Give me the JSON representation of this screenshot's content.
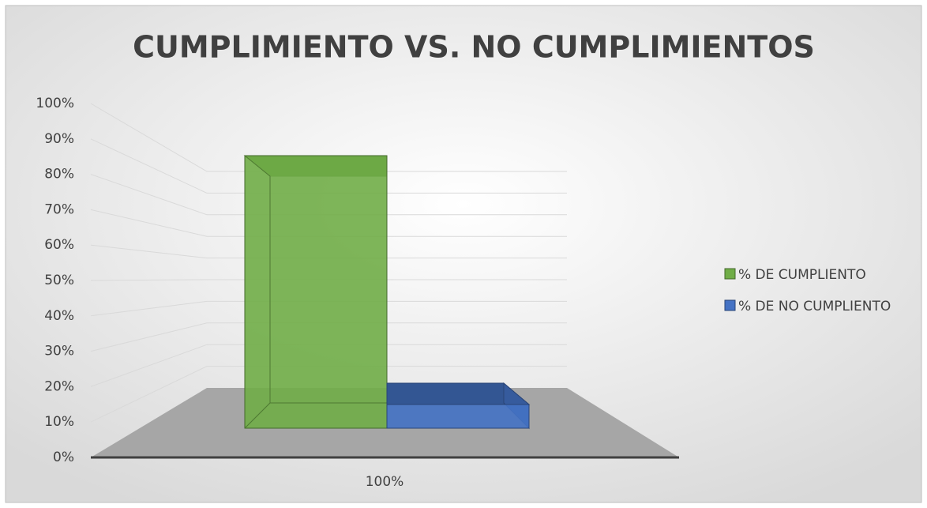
{
  "chart_data": {
    "type": "bar3d",
    "title": "CUMPLIMIENTO VS. NO CUMPLIMIENTOS",
    "categories": [
      "100%"
    ],
    "series": [
      {
        "name": "% DE CUMPLIENTO",
        "color": "#70ad47",
        "values": [
          92
        ]
      },
      {
        "name": "% DE NO CUMPLIENTO",
        "color": "#4472c4",
        "values": [
          8
        ]
      }
    ],
    "ylim": [
      0,
      100
    ],
    "yticks": [
      {
        "value": 0,
        "label": "0%"
      },
      {
        "value": 10,
        "label": "10%"
      },
      {
        "value": 20,
        "label": "20%"
      },
      {
        "value": 30,
        "label": "30%"
      },
      {
        "value": 40,
        "label": "40%"
      },
      {
        "value": 50,
        "label": "50%"
      },
      {
        "value": 60,
        "label": "60%"
      },
      {
        "value": 70,
        "label": "70%"
      },
      {
        "value": 80,
        "label": "80%"
      },
      {
        "value": 90,
        "label": "90%"
      },
      {
        "value": 100,
        "label": "100%"
      }
    ],
    "grid": true,
    "legend": "right"
  }
}
